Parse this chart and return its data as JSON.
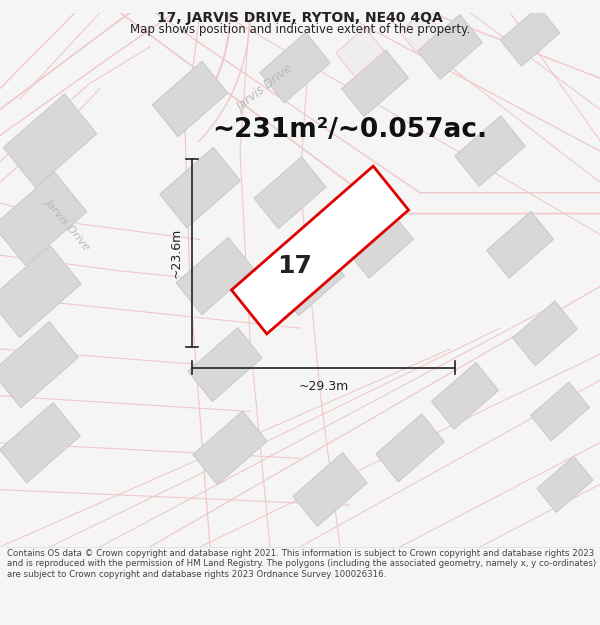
{
  "title_line1": "17, JARVIS DRIVE, RYTON, NE40 4QA",
  "title_line2": "Map shows position and indicative extent of the property.",
  "area_text": "~231m²/~0.057ac.",
  "number_label": "17",
  "dim_vertical": "~23.6m",
  "dim_horizontal": "~29.3m",
  "footer_text": "Contains OS data © Crown copyright and database right 2021. This information is subject to Crown copyright and database rights 2023 and is reproduced with the permission of HM Land Registry. The polygons (including the associated geometry, namely x, y co-ordinates) are subject to Crown copyright and database rights 2023 Ordnance Survey 100026316.",
  "bg_color": "#f5f5f5",
  "map_bg": "#ffffff",
  "road_line_color": "#f0c8c8",
  "building_fill": "#d8d8d8",
  "building_edge": "#c8c8c8",
  "highlight_fill": "#ffffff",
  "highlight_edge": "#e00000",
  "road_label_color": "#b8b8b8",
  "title_color": "#222222",
  "dim_color": "#222222",
  "number_color": "#222222",
  "area_color": "#111111",
  "footer_color": "#444444",
  "title_fontsize": 10,
  "subtitle_fontsize": 8.5,
  "area_fontsize": 19,
  "number_fontsize": 18,
  "dim_fontsize": 9,
  "footer_fontsize": 6.2
}
